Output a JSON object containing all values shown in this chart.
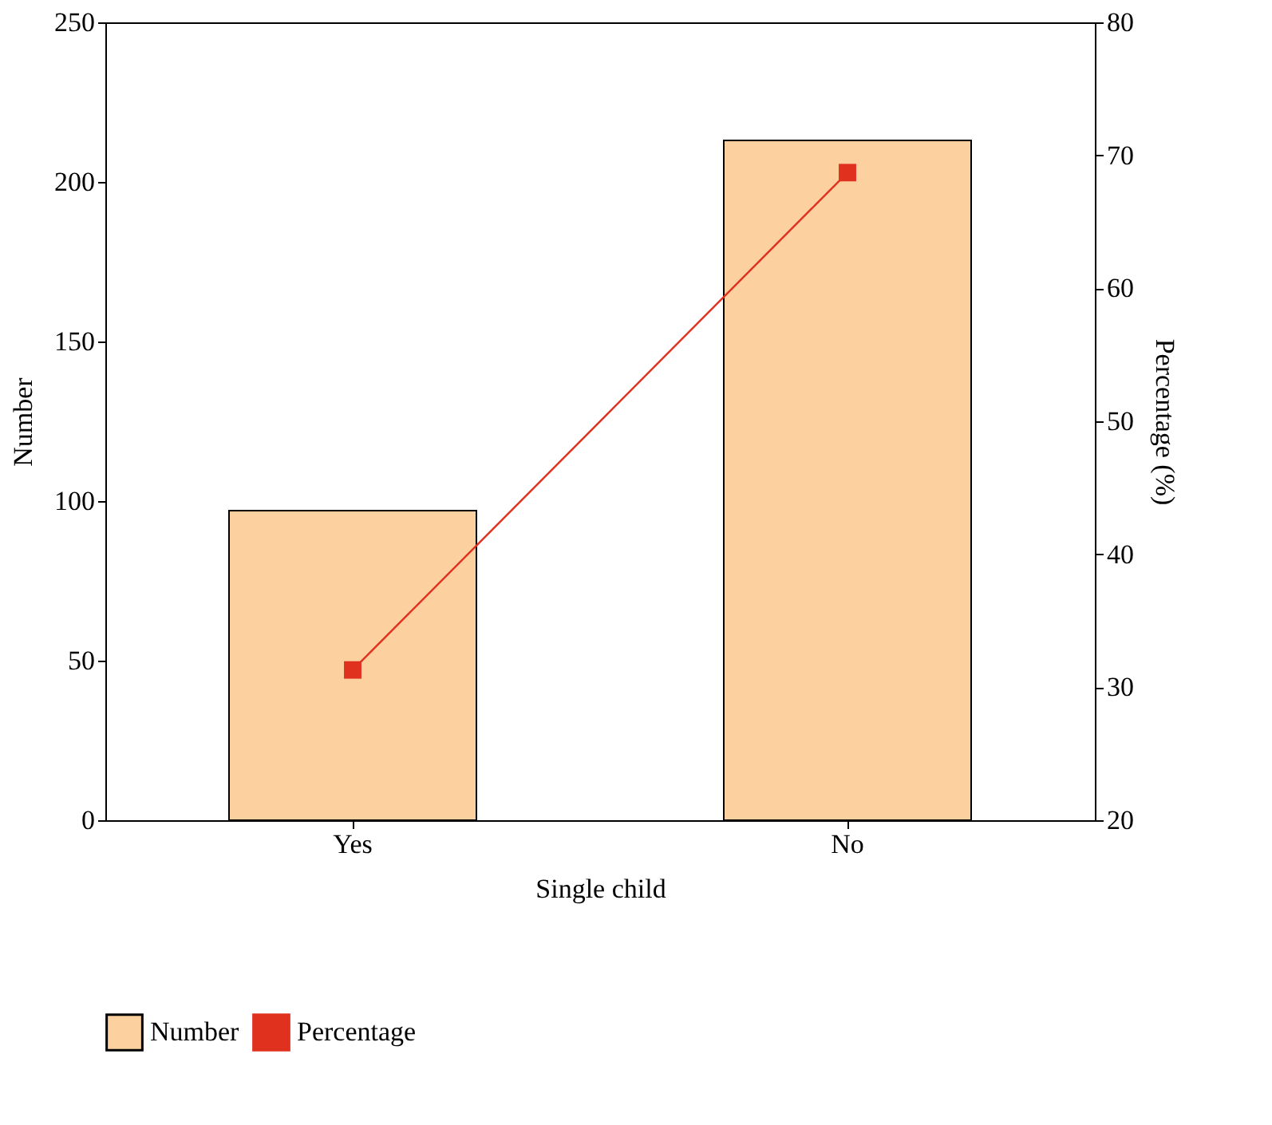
{
  "chart_data": {
    "type": "bar",
    "xlabel": "Single child",
    "ylabel": "Number",
    "y2label": "Percentage (%)",
    "categories": [
      "Yes",
      "No"
    ],
    "series": [
      {
        "name": "Number",
        "color": "#fdd09f",
        "values": [
          97,
          213
        ]
      },
      {
        "name": "Percentage",
        "type": "line",
        "axis": "y2",
        "color": "#e0301e",
        "values": [
          31.3,
          68.7
        ]
      }
    ],
    "ylim": [
      0,
      250
    ],
    "yticks": [
      0,
      50,
      100,
      150,
      200,
      250
    ],
    "y2lim": [
      20,
      80
    ],
    "y2ticks": [
      20,
      30,
      40,
      50,
      60,
      70,
      80
    ],
    "marker": "square",
    "line_style": "solid",
    "grid": false,
    "legend": "bottom"
  }
}
